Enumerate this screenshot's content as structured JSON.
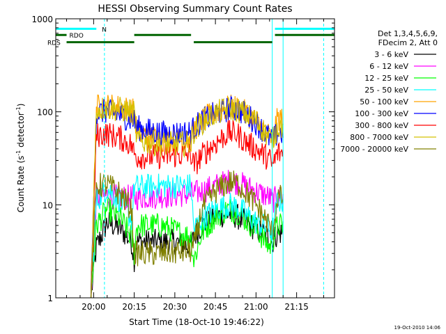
{
  "chart_data": {
    "type": "line",
    "title": "HESSI Observing Summary Count Rates",
    "xlabel": "Start Time (18-Oct-10 19:46:22)",
    "ylabel_main": "Count Rate (s",
    "ylabel_sup1": "-1",
    "ylabel_mid": " detector",
    "ylabel_sup2": "-1",
    "ylabel_end": ")",
    "yscale": "log",
    "xlim": [
      "19:46",
      "21:29"
    ],
    "ylim": [
      1,
      1000
    ],
    "x_ticks": [
      "20:00",
      "20:15",
      "20:30",
      "20:45",
      "21:00",
      "21:15"
    ],
    "y_ticks": [
      "1",
      "10",
      "100",
      "1000"
    ],
    "legend_header": [
      "Det 1,3,4,5,6,9,",
      "FDecim 2, Att 0"
    ],
    "legend_position": "right",
    "series": [
      {
        "name": "3 - 6 keV",
        "color": "#000000",
        "x": [
          "19:59",
          "20:01",
          "20:05",
          "20:10",
          "20:14",
          "20:15",
          "20:16",
          "20:20",
          "20:25",
          "20:30",
          "20:36",
          "20:37",
          "20:40",
          "20:45",
          "20:50",
          "20:53",
          "20:56",
          "21:00",
          "21:05",
          "21:06",
          "21:08",
          "21:10"
        ],
        "y": [
          1,
          3.5,
          6.5,
          5.5,
          4,
          2.6,
          4,
          4,
          4,
          4,
          3.5,
          4.5,
          6,
          7.5,
          8,
          7.5,
          6.5,
          5.5,
          4.5,
          4,
          5,
          5
        ]
      },
      {
        "name": "6 - 12 keV",
        "color": "#ff00ff",
        "x": [
          "19:59",
          "20:01",
          "20:05",
          "20:10",
          "20:15",
          "20:16",
          "20:25",
          "20:36",
          "20:40",
          "20:45",
          "20:50",
          "20:53",
          "20:56",
          "21:00",
          "21:05",
          "21:06",
          "21:08",
          "21:10"
        ],
        "y": [
          1,
          12,
          12.5,
          12,
          12,
          12,
          12.5,
          13,
          14,
          16,
          18,
          17.5,
          16,
          14,
          12,
          11,
          12,
          12
        ]
      },
      {
        "name": "12 - 25 keV",
        "color": "#00ff00",
        "x": [
          "19:59",
          "20:01",
          "20:05",
          "20:10",
          "20:14",
          "20:15",
          "20:16",
          "20:25",
          "20:36",
          "20:37",
          "20:40",
          "20:45",
          "20:50",
          "20:53",
          "20:56",
          "21:00",
          "21:05",
          "21:06",
          "21:08",
          "21:10"
        ],
        "y": [
          1,
          6,
          9,
          7,
          4.5,
          3,
          6,
          6,
          4.5,
          2.5,
          5,
          7.5,
          9,
          8.5,
          7,
          5.5,
          3.5,
          4,
          6,
          6
        ]
      },
      {
        "name": "25 - 50 keV",
        "color": "#00ffff",
        "x": [
          "19:59",
          "20:01",
          "20:05",
          "20:10",
          "20:14",
          "20:15",
          "20:16",
          "20:25",
          "20:35",
          "20:36",
          "20:37",
          "20:40",
          "20:45",
          "20:50",
          "20:53",
          "20:56",
          "21:00",
          "21:05",
          "21:06",
          "21:08",
          "21:10"
        ],
        "y": [
          1,
          11,
          15,
          11,
          7,
          15.5,
          15.5,
          16,
          16,
          16,
          5.5,
          7,
          9,
          10,
          9.5,
          8,
          6.5,
          5.5,
          5,
          11,
          11
        ]
      },
      {
        "name": "50 - 100 keV",
        "color": "#ffa500",
        "x": [
          "19:59",
          "20:01",
          "20:03",
          "20:05",
          "20:10",
          "20:14",
          "20:15",
          "20:16",
          "20:20",
          "20:25",
          "20:30",
          "20:36",
          "20:37",
          "20:40",
          "20:45",
          "20:50",
          "20:53",
          "20:56",
          "21:00",
          "21:05",
          "21:06",
          "21:08",
          "21:10"
        ],
        "y": [
          1,
          112,
          115,
          116,
          112,
          105,
          100,
          60,
          55,
          51,
          50,
          50,
          64,
          80,
          100,
          112,
          110,
          98,
          80,
          55,
          50,
          85,
          85
        ]
      },
      {
        "name": "100 - 300 keV",
        "color": "#0000ff",
        "x": [
          "19:59",
          "20:01",
          "20:03",
          "20:05",
          "20:10",
          "20:14",
          "20:15",
          "20:16",
          "20:20",
          "20:25",
          "20:30",
          "20:36",
          "20:37",
          "20:40",
          "20:45",
          "20:50",
          "20:53",
          "20:56",
          "21:00",
          "21:05",
          "21:06",
          "21:08",
          "21:10"
        ],
        "y": [
          1,
          96,
          100,
          101,
          92,
          82,
          80,
          68,
          63,
          59,
          59,
          60,
          67,
          80,
          95,
          108,
          107,
          95,
          77,
          52,
          48,
          59,
          59
        ]
      },
      {
        "name": "300 - 800 keV",
        "color": "#ff0000",
        "x": [
          "19:59",
          "20:01",
          "20:05",
          "20:10",
          "20:14",
          "20:15",
          "20:16",
          "20:25",
          "20:36",
          "20:37",
          "20:40",
          "20:45",
          "20:50",
          "20:53",
          "20:56",
          "21:00",
          "21:05",
          "21:06",
          "21:08",
          "21:10"
        ],
        "y": [
          1,
          56,
          58,
          52,
          44,
          35,
          33,
          33,
          35,
          26,
          34,
          46,
          60,
          58,
          48,
          40,
          31,
          26,
          36,
          36
        ]
      },
      {
        "name": "800 - 7000 keV",
        "color": "#d4c000",
        "x": [
          "19:59",
          "20:01",
          "20:05",
          "20:10",
          "20:14",
          "20:15",
          "20:16",
          "20:20",
          "20:25",
          "20:30",
          "20:36",
          "20:37",
          "20:40",
          "20:45",
          "20:50",
          "20:53",
          "20:56",
          "21:00",
          "21:05",
          "21:06",
          "21:08",
          "21:10"
        ],
        "y": [
          1,
          108,
          110,
          106,
          100,
          95,
          50,
          47,
          45,
          45,
          46,
          62,
          78,
          96,
          108,
          106,
          95,
          80,
          52,
          48,
          70,
          70
        ]
      },
      {
        "name": "7000 - 20000 keV",
        "color": "#808000",
        "x": [
          "19:59",
          "20:01",
          "20:05",
          "20:10",
          "20:14",
          "20:15",
          "20:16",
          "20:25",
          "20:36",
          "20:37",
          "20:40",
          "20:45",
          "20:50",
          "20:53",
          "20:56",
          "21:00",
          "21:05",
          "21:06",
          "21:08",
          "21:10"
        ],
        "y": [
          1,
          16,
          16.5,
          13,
          9,
          3,
          3,
          3,
          3.2,
          3.5,
          9,
          14,
          17.5,
          17,
          14,
          10,
          6,
          5,
          12,
          12
        ]
      }
    ],
    "flags": [
      {
        "name": "N",
        "color": "#00ffff",
        "y": 780,
        "segments": [
          [
            "19:46",
            "20:01"
          ],
          [
            "21:07",
            "21:29"
          ]
        ]
      },
      {
        "name": "RDO",
        "color": "#006400",
        "y": 670,
        "segments": [
          [
            "19:46",
            "19:50"
          ],
          [
            "20:15",
            "20:36"
          ],
          [
            "21:07",
            "21:29"
          ]
        ]
      },
      {
        "name": "RDS",
        "color": "#006400",
        "y": 560,
        "segments": [
          [
            "19:50",
            "20:15"
          ],
          [
            "20:37",
            "21:06"
          ]
        ]
      }
    ],
    "vlines": [
      {
        "x": "19:46",
        "color": "#00ffff",
        "style": "solid"
      },
      {
        "x": "20:04",
        "color": "#00ffff",
        "style": "dashed"
      },
      {
        "x": "21:06",
        "color": "#00ffff",
        "style": "solid"
      },
      {
        "x": "21:10",
        "color": "#00ffff",
        "style": "solid"
      },
      {
        "x": "21:25",
        "color": "#00ffff",
        "style": "dashed"
      }
    ]
  },
  "footer": {
    "stamp": "19-Oct-2010 14:06"
  }
}
